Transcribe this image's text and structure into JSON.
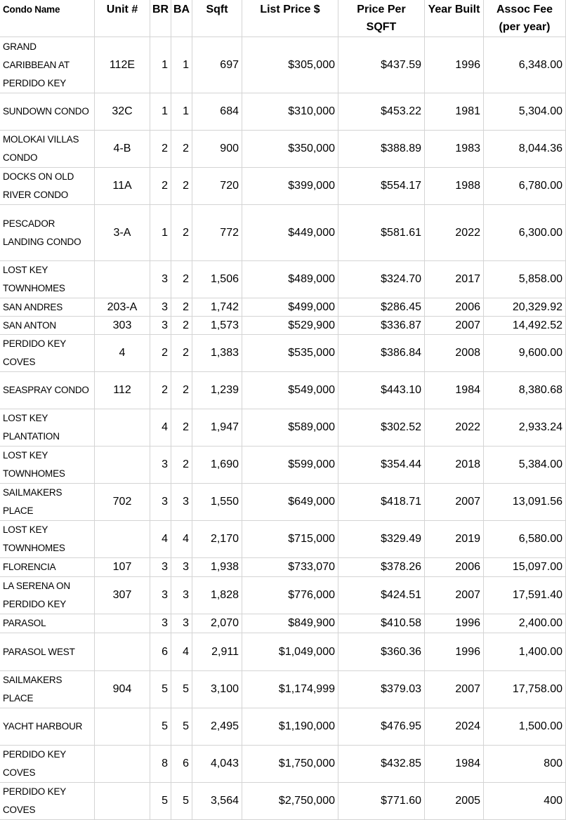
{
  "table": {
    "header": [
      "Condo Name",
      "Unit #",
      "BR",
      "BA",
      "Sqft",
      "List Price $",
      "Price Per SQFT",
      "Year Built",
      "Assoc Fee (per year)"
    ],
    "rows": [
      [
        "GRAND CARIBBEAN AT PERDIDO KEY",
        "112E",
        "1",
        "1",
        "697",
        "$305,000",
        "$437.59",
        "1996",
        "6,348.00"
      ],
      [
        "SUNDOWN CONDO",
        "32C",
        "1",
        "1",
        "684",
        "$310,000",
        "$453.22",
        "1981",
        "5,304.00"
      ],
      [
        "MOLOKAI VILLAS CONDO",
        "4-B",
        "2",
        "2",
        "900",
        "$350,000",
        "$388.89",
        "1983",
        "8,044.36"
      ],
      [
        "DOCKS ON OLD RIVER CONDO",
        "11A",
        "2",
        "2",
        "720",
        "$399,000",
        "$554.17",
        "1988",
        "6,780.00"
      ],
      [
        "PESCADOR LANDING CONDO",
        "3-A",
        "1",
        "2",
        "772",
        "$449,000",
        "$581.61",
        "2022",
        "6,300.00"
      ],
      [
        "LOST KEY TOWNHOMES",
        null,
        "3",
        "2",
        "1,506",
        "$489,000",
        "$324.70",
        "2017",
        "5,858.00"
      ],
      [
        "SAN ANDRES",
        "203-A",
        "3",
        "2",
        "1,742",
        "$499,000",
        "$286.45",
        "2006",
        "20,329.92"
      ],
      [
        "SAN ANTON",
        "303",
        "3",
        "2",
        "1,573",
        "$529,900",
        "$336.87",
        "2007",
        "14,492.52"
      ],
      [
        "PERDIDO KEY COVES",
        "4",
        "2",
        "2",
        "1,383",
        "$535,000",
        "$386.84",
        "2008",
        "9,600.00"
      ],
      [
        "SEASPRAY CONDO",
        "112",
        "2",
        "2",
        "1,239",
        "$549,000",
        "$443.10",
        "1984",
        "8,380.68"
      ],
      [
        "LOST KEY PLANTATION",
        null,
        "4",
        "2",
        "1,947",
        "$589,000",
        "$302.52",
        "2022",
        "2,933.24"
      ],
      [
        "LOST KEY TOWNHOMES",
        null,
        "3",
        "2",
        "1,690",
        "$599,000",
        "$354.44",
        "2018",
        "5,384.00"
      ],
      [
        "SAILMAKERS PLACE",
        "702",
        "3",
        "3",
        "1,550",
        "$649,000",
        "$418.71",
        "2007",
        "13,091.56"
      ],
      [
        "LOST KEY TOWNHOMES",
        null,
        "4",
        "4",
        "2,170",
        "$715,000",
        "$329.49",
        "2019",
        "6,580.00"
      ],
      [
        "FLORENCIA",
        "107",
        "3",
        "3",
        "1,938",
        "$733,070",
        "$378.26",
        "2006",
        "15,097.00"
      ],
      [
        "LA SERENA ON PERDIDO KEY",
        "307",
        "3",
        "3",
        "1,828",
        "$776,000",
        "$424.51",
        "2007",
        "17,591.40"
      ],
      [
        "PARASOL",
        null,
        "3",
        "3",
        "2,070",
        "$849,900",
        "$410.58",
        "1996",
        "2,400.00"
      ],
      [
        "PARASOL WEST",
        null,
        "6",
        "4",
        "2,911",
        "$1,049,000",
        "$360.36",
        "1996",
        "1,400.00"
      ],
      [
        "SAILMAKERS PLACE",
        "904",
        "5",
        "5",
        "3,100",
        "$1,174,999",
        "$379.03",
        "2007",
        "17,758.00"
      ],
      [
        "YACHT HARBOUR",
        null,
        "5",
        "5",
        "2,495",
        "$1,190,000",
        "$476.95",
        "2024",
        "1,500.00"
      ],
      [
        "PERDIDO KEY COVES",
        null,
        "8",
        "6",
        "4,043",
        "$1,750,000",
        "$432.85",
        "1984",
        "800"
      ],
      [
        "PERDIDO KEY COVES",
        null,
        "5",
        "5",
        "3,564",
        "$2,750,000",
        "$771.60",
        "2005",
        "400"
      ]
    ]
  }
}
